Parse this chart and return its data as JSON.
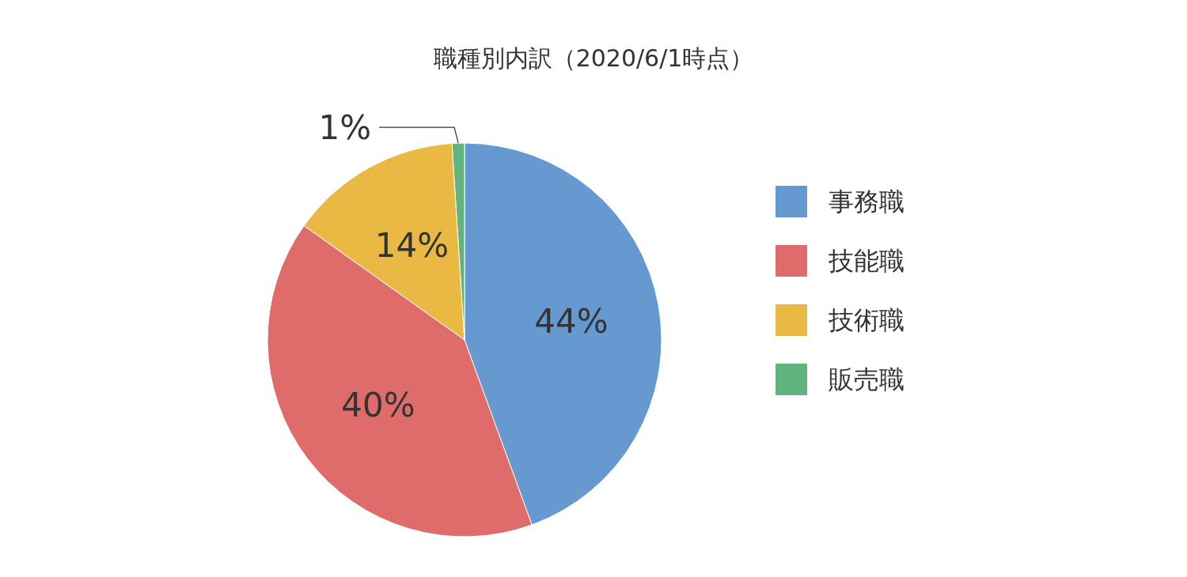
{
  "chart_data": {
    "type": "pie",
    "title": "職種別内訳（2020/6/1時点）",
    "categories": [
      "事務職",
      "技能職",
      "技術職",
      "販売職"
    ],
    "values": [
      44,
      40,
      14,
      1
    ],
    "colors": [
      "#6699cf",
      "#e06b6b",
      "#eab944",
      "#63b37f"
    ],
    "value_labels": [
      "44%",
      "40%",
      "14%",
      "1%"
    ],
    "legend": "right"
  }
}
